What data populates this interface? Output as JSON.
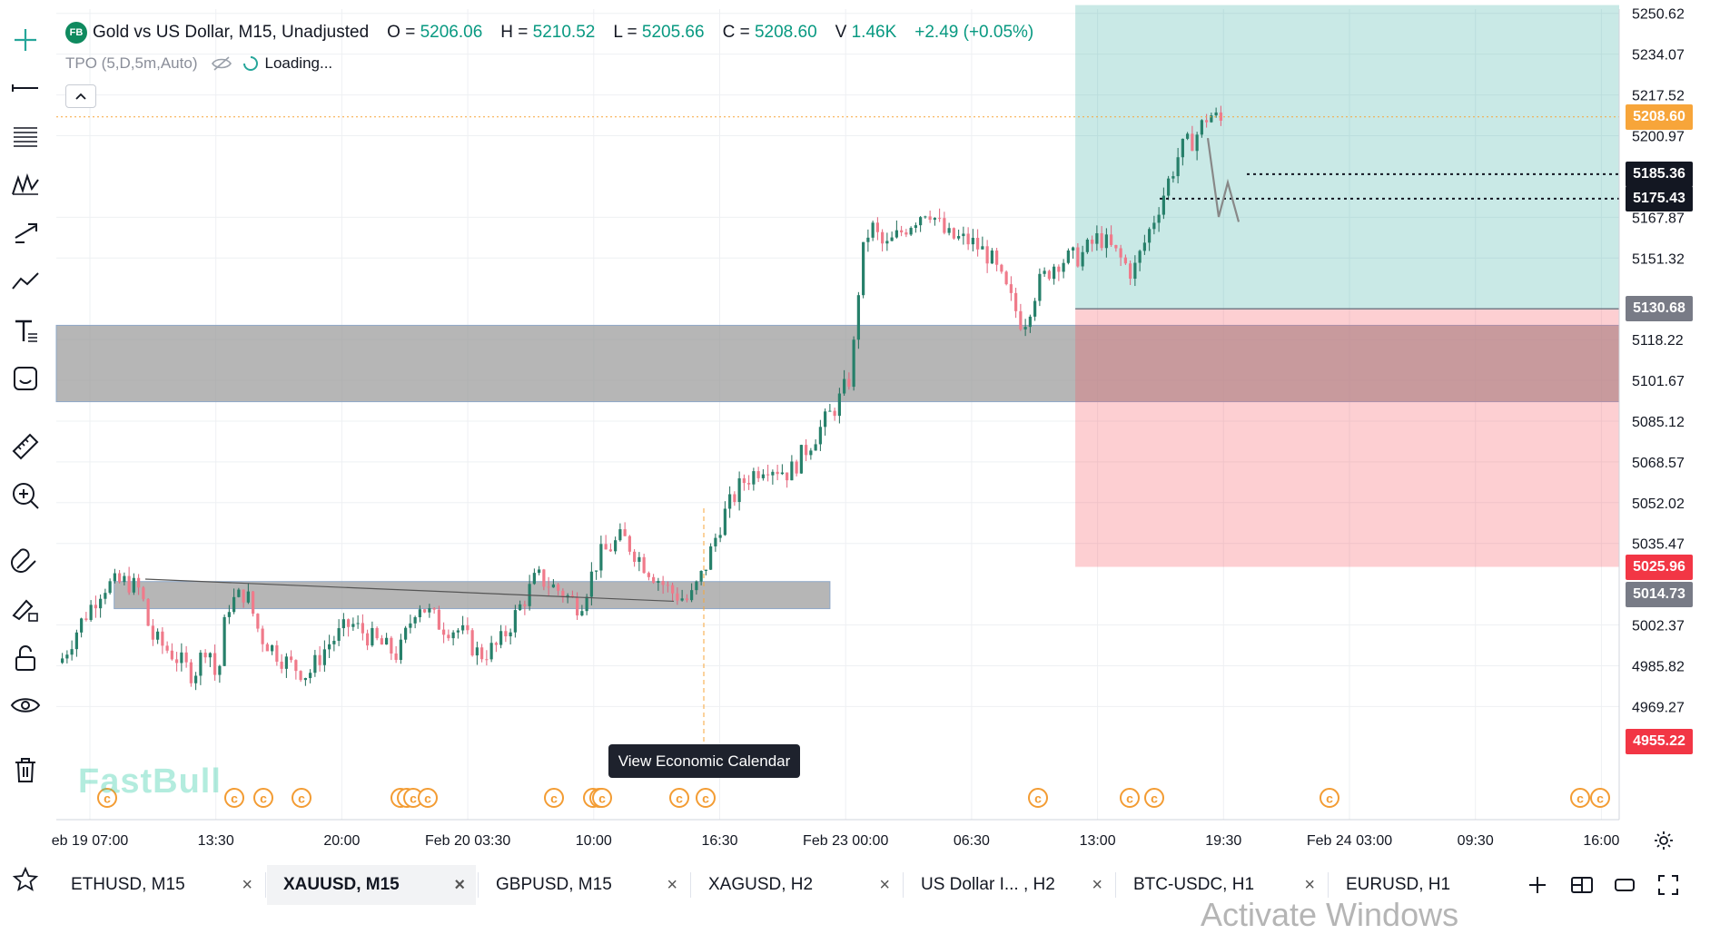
{
  "legend": {
    "logo": "FB",
    "title": "Gold vs US Dollar, M15, Unadjusted",
    "o_label": "O =",
    "o_value": "5206.06",
    "h_label": "H =",
    "h_value": "5210.52",
    "l_label": "L =",
    "l_value": "5205.66",
    "c_label": "C =",
    "c_value": "5208.60",
    "v_label": "V",
    "v_value": "1.46K",
    "change": "+2.49 (+0.05%)"
  },
  "indicator": {
    "name": "TPO (5,D,5m,Auto)",
    "status": "Loading..."
  },
  "toolbar": {
    "icons": [
      "crosshair-icon",
      "trend-line-icon",
      "fib-retracement-icon",
      "pattern-icon",
      "projection-icon",
      "forecast-icon",
      "text-icon",
      "emoji-icon",
      "ruler-icon",
      "zoom-in-icon",
      "magnet-icon",
      "lock-drawing-icon",
      "unlock-icon",
      "eye-icon",
      "trash-icon"
    ]
  },
  "watermark": "FastBull",
  "tooltip": "View Economic Calendar",
  "activate_windows": "Activate Windows",
  "chart_data": {
    "type": "candlestick",
    "symbol": "XAUUSD",
    "timeframe": "M15",
    "y_ticks": [
      "5250.62",
      "5234.07",
      "5217.52",
      "5200.97",
      "5167.87",
      "5151.32",
      "5118.22",
      "5101.67",
      "5085.12",
      "5068.57",
      "5052.02",
      "5035.47",
      "5002.37",
      "4985.82",
      "4969.27"
    ],
    "ylim": [
      4955,
      5254
    ],
    "x_ticks": [
      "eb 19 07:00",
      "13:30",
      "20:00",
      "Feb 20 03:30",
      "10:00",
      "16:30",
      "Feb 23 00:00",
      "06:30",
      "13:00",
      "19:30",
      "Feb 24 03:00",
      "09:30",
      "16:00"
    ],
    "price_tags": [
      {
        "label": "5208.60",
        "value": 5208.6,
        "color": "#f7a53a"
      },
      {
        "label": "5185.36",
        "value": 5185.36,
        "color": "#131722"
      },
      {
        "label": "5175.43",
        "value": 5175.43,
        "color": "#131722"
      },
      {
        "label": "5130.68",
        "value": 5130.68,
        "color": "#787b86"
      },
      {
        "label": "5025.96",
        "value": 5025.96,
        "color": "#f23645"
      },
      {
        "label": "5014.73",
        "value": 5014.73,
        "color": "#787b86"
      },
      {
        "label": "4955.22",
        "value": 4955.22,
        "color": "#f23645"
      }
    ],
    "zones": [
      {
        "name": "supply-demand-zone-upper",
        "y_top": 5124,
        "y_bottom": 5093,
        "x_start": 0.0,
        "x_end": 1.0,
        "color": "#9a9a9a"
      },
      {
        "name": "supply-demand-zone-lower",
        "y_top": 5020,
        "y_bottom": 5009,
        "x_start": 0.037,
        "x_end": 0.495,
        "color": "#9a9a9a"
      }
    ],
    "position": {
      "entry": 5130.68,
      "target": 5254,
      "stop": 5025.96,
      "x_start": 0.652,
      "x_end": 1.0
    },
    "colors": {
      "up": "#26806a",
      "down": "#f07a8a",
      "wick_up": "#1f6b58",
      "wick_down": "#e0607a"
    }
  },
  "tabs": [
    {
      "label": "ETHUSD, M15",
      "active": false
    },
    {
      "label": "XAUUSD, M15",
      "active": true
    },
    {
      "label": "GBPUSD, M15",
      "active": false
    },
    {
      "label": "XAGUSD, H2",
      "active": false
    },
    {
      "label": "US Dollar I... , H2",
      "active": false
    },
    {
      "label": "BTC-USDC, H1",
      "active": false
    },
    {
      "label": "EURUSD, H1",
      "active": false
    }
  ],
  "tab_close": "×"
}
